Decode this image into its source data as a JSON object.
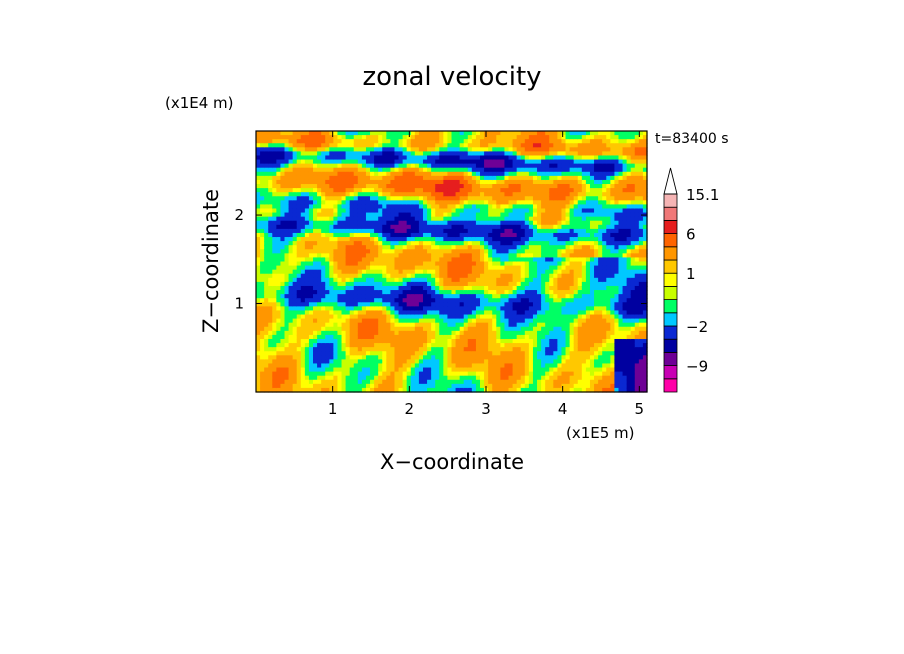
{
  "chart_data": {
    "type": "heatmap",
    "title": "zonal velocity",
    "xlabel": "X−coordinate",
    "ylabel": "Z−coordinate",
    "x_unit": "(x1E5 m)",
    "y_unit": "(x1E4 m)",
    "time_label": "t=83400 s",
    "xlim": [
      0,
      5.1
    ],
    "ylim": [
      0,
      2.95
    ],
    "x_ticks": [
      1,
      2,
      3,
      4,
      5
    ],
    "y_ticks": [
      1,
      2
    ],
    "colorbar": {
      "labels": [
        {
          "text": "15.1",
          "value": 15.1
        },
        {
          "text": "6",
          "value": 6
        },
        {
          "text": "1",
          "value": 1
        },
        {
          "text": "−2",
          "value": -2
        },
        {
          "text": "−9",
          "value": -9
        }
      ],
      "levels": [
        {
          "lo": -16,
          "hi": -12,
          "color": "#ff00a8"
        },
        {
          "lo": -12,
          "hi": -9,
          "color": "#c800b4"
        },
        {
          "lo": -9,
          "hi": -6,
          "color": "#6e0096"
        },
        {
          "lo": -6,
          "hi": -4,
          "color": "#0000a0"
        },
        {
          "lo": -4,
          "hi": -2,
          "color": "#0a28d2"
        },
        {
          "lo": -2,
          "hi": -1,
          "color": "#00c8ff"
        },
        {
          "lo": -1,
          "hi": 0,
          "color": "#00ff64"
        },
        {
          "lo": 0,
          "hi": 0.5,
          "color": "#c8ff00"
        },
        {
          "lo": 0.5,
          "hi": 1,
          "color": "#ffff00"
        },
        {
          "lo": 1,
          "hi": 2,
          "color": "#ffc800"
        },
        {
          "lo": 2,
          "hi": 4,
          "color": "#ff9600"
        },
        {
          "lo": 4,
          "hi": 6,
          "color": "#ff6400"
        },
        {
          "lo": 6,
          "hi": 9,
          "color": "#e61e1e"
        },
        {
          "lo": 9,
          "hi": 12,
          "color": "#f07878"
        },
        {
          "lo": 12,
          "hi": 15.1,
          "color": "#f5b4b4"
        }
      ],
      "extend_top": true
    },
    "grid": false,
    "field_bands": [
      {
        "z": 2.85,
        "value": 2.5,
        "width": 0.12,
        "amp": 1.0
      },
      {
        "z": 2.7,
        "value": -4.5,
        "width": 0.12,
        "amp": 1.0
      },
      {
        "z": 2.4,
        "value": 3.5,
        "width": 0.14,
        "amp": 1.0
      },
      {
        "z": 2.15,
        "value": -1.5,
        "width": 0.1,
        "amp": 1.0
      },
      {
        "z": 1.9,
        "value": -4.0,
        "width": 0.12,
        "amp": 1.0
      },
      {
        "z": 1.55,
        "value": 1.5,
        "width": 0.18,
        "amp": 1.0
      },
      {
        "z": 1.1,
        "value": -3.5,
        "width": 0.15,
        "amp": 1.0
      },
      {
        "z": 0.7,
        "value": 1.0,
        "width": 0.2,
        "amp": 1.0
      },
      {
        "z": 0.3,
        "value": 0.3,
        "width": 0.2,
        "amp": 1.0
      }
    ]
  }
}
